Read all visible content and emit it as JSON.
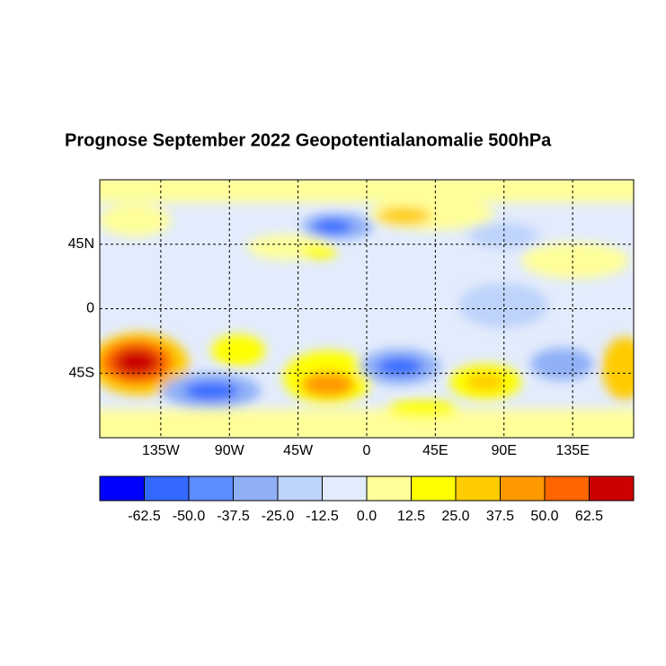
{
  "title": "Prognose September 2022 Geopotentialanomalie 500hPa",
  "map": {
    "lon_range": [
      -175,
      175
    ],
    "lat_range": [
      -90,
      90
    ],
    "lon_ticks": [
      {
        "value": -135,
        "label": "135W"
      },
      {
        "value": -90,
        "label": "90W"
      },
      {
        "value": -45,
        "label": "45W"
      },
      0,
      {
        "value": 45,
        "label": "45E"
      },
      {
        "value": 90,
        "label": "90E"
      },
      {
        "value": 135,
        "label": "135E"
      }
    ],
    "lat_ticks": [
      {
        "value": 45,
        "label": "45N"
      },
      0,
      {
        "value": -45,
        "label": "45S"
      }
    ],
    "grid": true
  },
  "colorbar": {
    "colors": [
      "#0000ff",
      "#3369ff",
      "#5c8cff",
      "#8fb0f7",
      "#bdd3fb",
      "#e3ecfc",
      "#ffff99",
      "#ffff00",
      "#ffcc00",
      "#ff9900",
      "#ff6600",
      "#cc0000"
    ],
    "levels": [
      -62.5,
      {
        "value": -50,
        "label": "-50.0"
      },
      -37.5,
      {
        "value": -25,
        "label": "-25.0"
      },
      -12.5,
      {
        "value": 0,
        "label": "0.0"
      },
      12.5,
      {
        "value": 25,
        "label": "25.0"
      },
      37.5,
      {
        "value": 50,
        "label": "50.0"
      },
      62.5
    ]
  }
}
